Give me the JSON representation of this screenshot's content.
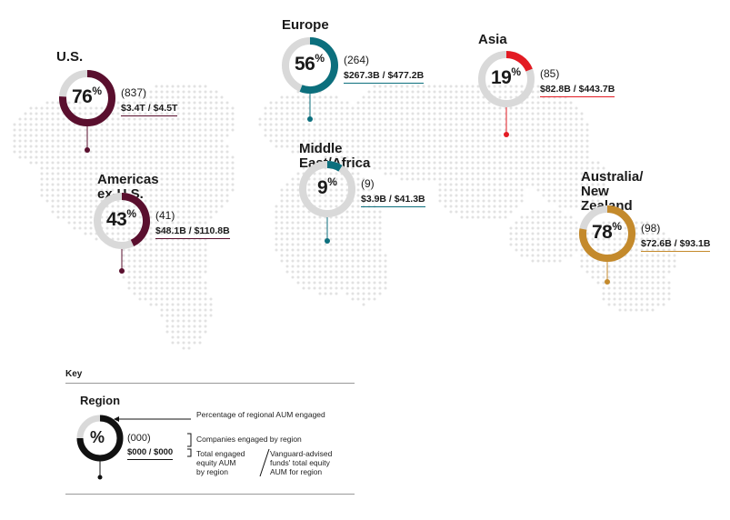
{
  "regions": [
    {
      "id": "us",
      "title": "U.S.",
      "pct": 76,
      "count": "(837)",
      "aum": "$3.4T / $4.5T",
      "color": "#5a0f2e"
    },
    {
      "id": "europe",
      "title": "Europe",
      "pct": 56,
      "count": "(264)",
      "aum": "$267.3B / $477.2B",
      "color": "#0c6f7d"
    },
    {
      "id": "asia",
      "title": "Asia",
      "pct": 19,
      "count": "(85)",
      "aum": "$82.8B / $443.7B",
      "color": "#e31b23"
    },
    {
      "id": "americas",
      "title": "Americas ex-U.S.",
      "pct": 43,
      "count": "(41)",
      "aum": "$48.1B / $110.8B",
      "color": "#5a0f2e"
    },
    {
      "id": "mea",
      "title": "Middle East/Africa",
      "pct": 9,
      "count": "(9)",
      "aum": "$3.9B / $41.3B",
      "color": "#0c6f7d"
    },
    {
      "id": "anz",
      "title": "Australia/\nNew Zealand",
      "pct": 78,
      "count": "(98)",
      "aum": "$72.6B / $93.1B",
      "color": "#c48a2c"
    }
  ],
  "key": {
    "heading": "Key",
    "region_label": "Region",
    "pct_symbol": "%",
    "count_placeholder": "(000)",
    "aum_placeholder": "$000 / $000",
    "note_pct": "Percentage of regional AUM engaged",
    "note_companies": "Companies engaged by region",
    "note_total": "Total engaged\nequity AUM\nby region",
    "note_funds": "Vanguard-advised\nfunds' total equity\nAUM for region"
  },
  "colors": {
    "track": "#d9d9d9",
    "map_dot": "#e2e2e2",
    "key": "#111111"
  }
}
